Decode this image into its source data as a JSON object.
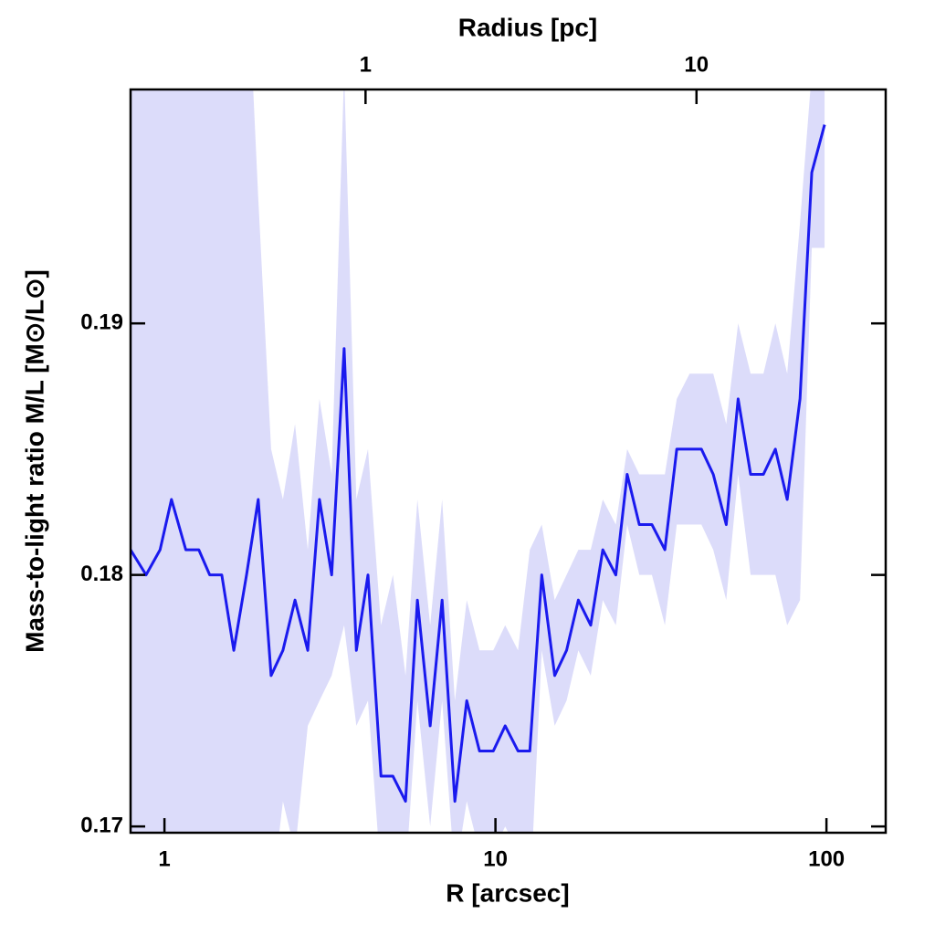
{
  "chart_data": {
    "type": "line",
    "x_label": "R [arcsec]",
    "x2_label": "Radius [pc]",
    "y_label": "Mass-to-light ratio M/L [M⊙/L⊙]",
    "xscale": "log",
    "xlim": [
      0.79,
      151
    ],
    "xticks": [
      1,
      10,
      100
    ],
    "x2lim": [
      0.195,
      37.3
    ],
    "x2ticks": [
      1,
      10
    ],
    "ylim": [
      0.16975,
      0.1993
    ],
    "yticks": [
      0.17,
      0.18,
      0.19
    ],
    "x": [
      0.79,
      0.88,
      0.97,
      1.05,
      1.16,
      1.27,
      1.37,
      1.49,
      1.62,
      1.77,
      1.92,
      2.1,
      2.28,
      2.48,
      2.71,
      2.94,
      3.2,
      3.49,
      3.8,
      4.12,
      4.51,
      4.9,
      5.35,
      5.81,
      6.35,
      6.9,
      7.54,
      8.19,
      8.95,
      9.85,
      10.7,
      11.7,
      12.7,
      13.8,
      15.1,
      16.4,
      17.8,
      19.4,
      21.1,
      23.1,
      25.0,
      27.2,
      29.7,
      32.5,
      35.3,
      38.6,
      41.9,
      45.5,
      49.8,
      54.1,
      59.0,
      64.5,
      70.1,
      76.1,
      83.2,
      90.3,
      98.7
    ],
    "series": [
      {
        "color": "#1a1aee",
        "values": [
          0.181,
          0.18,
          0.181,
          0.183,
          0.181,
          0.181,
          0.18,
          0.18,
          0.177,
          0.18,
          0.183,
          0.176,
          0.177,
          0.179,
          0.177,
          0.183,
          0.18,
          0.189,
          0.177,
          0.18,
          0.172,
          0.172,
          0.171,
          0.179,
          0.174,
          0.179,
          0.171,
          0.175,
          0.173,
          0.173,
          0.174,
          0.173,
          0.173,
          0.18,
          0.176,
          0.177,
          0.179,
          0.178,
          0.181,
          0.18,
          0.184,
          0.182,
          0.182,
          0.181,
          0.185,
          0.185,
          0.185,
          0.184,
          0.182,
          0.187,
          0.184,
          0.184,
          0.185,
          0.183,
          0.187,
          0.196,
          0.1979
        ]
      }
    ],
    "band": {
      "color": "#dcdcfa",
      "upper": [
        0.205,
        0.205,
        0.205,
        0.205,
        0.205,
        0.205,
        0.205,
        0.205,
        0.205,
        0.205,
        0.195,
        0.185,
        0.183,
        0.186,
        0.181,
        0.187,
        0.184,
        0.2,
        0.183,
        0.185,
        0.178,
        0.18,
        0.176,
        0.183,
        0.178,
        0.183,
        0.175,
        0.179,
        0.177,
        0.177,
        0.178,
        0.177,
        0.181,
        0.182,
        0.179,
        0.18,
        0.181,
        0.181,
        0.183,
        0.182,
        0.185,
        0.184,
        0.184,
        0.184,
        0.187,
        0.188,
        0.188,
        0.188,
        0.186,
        0.19,
        0.188,
        0.188,
        0.19,
        0.188,
        0.194,
        0.2,
        0.202
      ],
      "lower": [
        0.165,
        0.165,
        0.165,
        0.165,
        0.165,
        0.165,
        0.165,
        0.165,
        0.165,
        0.165,
        0.165,
        0.167,
        0.171,
        0.169,
        0.174,
        0.175,
        0.176,
        0.178,
        0.174,
        0.175,
        0.168,
        0.168,
        0.168,
        0.175,
        0.17,
        0.175,
        0.168,
        0.171,
        0.169,
        0.169,
        0.17,
        0.169,
        0.167,
        0.177,
        0.174,
        0.175,
        0.177,
        0.176,
        0.179,
        0.178,
        0.182,
        0.18,
        0.18,
        0.178,
        0.182,
        0.182,
        0.182,
        0.181,
        0.179,
        0.184,
        0.18,
        0.18,
        0.18,
        0.178,
        0.179,
        0.193,
        0.193
      ]
    }
  }
}
